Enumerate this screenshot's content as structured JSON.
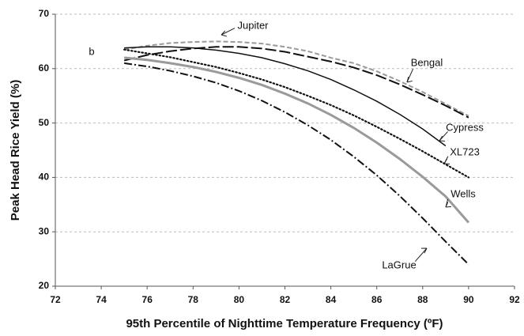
{
  "chart_data": {
    "type": "line",
    "xlabel": "95th Percentile of Nighttime Temperature Frequency (ºF)",
    "ylabel": "Peak Head Rice Yield (%)",
    "annotation": "b",
    "x": [
      75,
      76,
      77,
      78,
      79,
      80,
      81,
      82,
      83,
      84,
      85,
      86,
      87,
      88,
      89,
      90
    ],
    "series": [
      {
        "name": "Jupiter",
        "color": "#9a9a9a",
        "linestyle": "dashed",
        "values": [
          63.5,
          64.2,
          64.7,
          64.9,
          65,
          64.9,
          64.6,
          64,
          63.2,
          62,
          61,
          59.5,
          57.7,
          55.7,
          53.5,
          51.3
        ]
      },
      {
        "name": "Bengal",
        "color": "#111111",
        "linestyle": "longdash",
        "values": [
          61.5,
          62.5,
          63.2,
          63.7,
          64,
          64,
          63.7,
          63.1,
          62.2,
          61.3,
          60.2,
          58.8,
          57.1,
          55.2,
          53.2,
          51
        ]
      },
      {
        "name": "Cypress",
        "color": "#111111",
        "linestyle": "solid",
        "values": [
          63.8,
          64,
          64,
          63.8,
          63.4,
          62.8,
          62,
          60.9,
          59.6,
          58,
          56.1,
          54,
          51.6,
          48.9,
          45.8,
          null
        ]
      },
      {
        "name": "XL723",
        "color": "#111111",
        "linestyle": "dotted",
        "values": [
          63.5,
          62.8,
          62.1,
          61.2,
          60.3,
          59.2,
          58,
          56.6,
          55,
          53.3,
          51.4,
          49.3,
          47.1,
          44.8,
          42.4,
          40
        ]
      },
      {
        "name": "Wells",
        "color": "#9a9a9a",
        "linestyle": "thick",
        "values": [
          62,
          61.6,
          61,
          60.3,
          59.4,
          58.3,
          57,
          55.4,
          53.6,
          51.5,
          49.1,
          46.4,
          43.4,
          40.1,
          36.5,
          31.7
        ]
      },
      {
        "name": "LaGrue",
        "color": "#111111",
        "linestyle": "dashdot",
        "values": [
          61,
          60.4,
          59.6,
          58.6,
          57.4,
          55.9,
          54.1,
          52,
          49.6,
          46.9,
          43.8,
          40.4,
          36.6,
          32.5,
          28.2,
          24
        ]
      }
    ],
    "xlim": [
      72,
      92
    ],
    "xticks": [
      72,
      74,
      76,
      78,
      80,
      82,
      84,
      86,
      88,
      90,
      92
    ],
    "ylim": [
      20,
      70
    ],
    "yticks": [
      20,
      30,
      40,
      50,
      60,
      70
    ],
    "grid": true
  }
}
